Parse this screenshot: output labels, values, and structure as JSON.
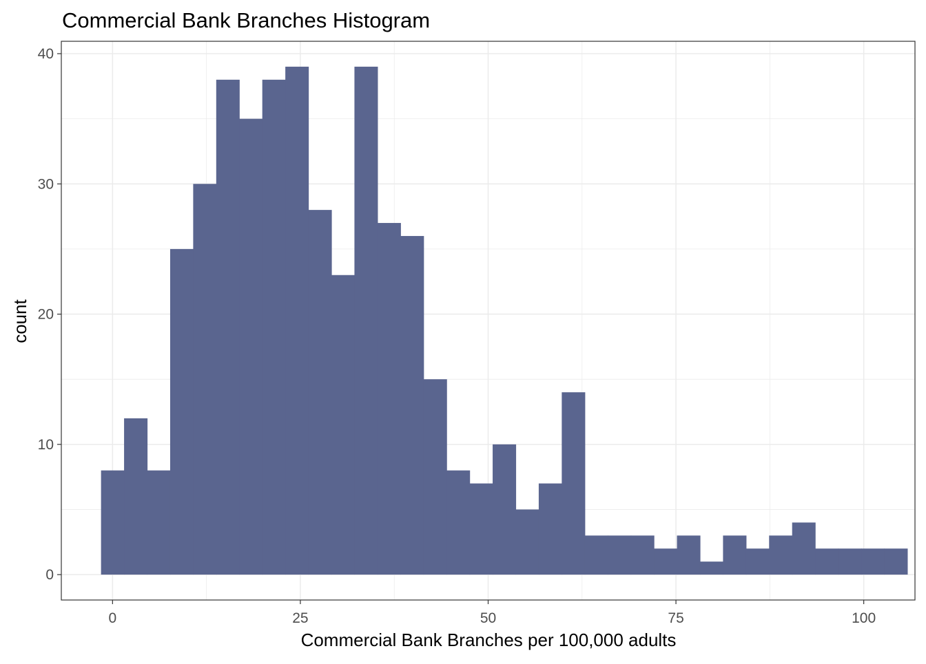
{
  "chart_data": {
    "type": "bar",
    "title": "Commercial Bank Branches Histogram",
    "xlabel": "Commercial Bank Branches per 100,000 adults",
    "ylabel": "count",
    "bin_width": 3.0667,
    "bin_start": -1.5333,
    "bin_edges": [
      -1.5333,
      1.5333,
      4.6,
      7.6667,
      10.7333,
      13.8,
      16.8667,
      19.9333,
      23.0,
      26.0667,
      29.1333,
      32.2,
      35.2667,
      38.3333,
      41.4,
      44.4667,
      47.5333,
      50.6,
      53.6667,
      56.7333,
      59.8,
      62.8667,
      65.9333,
      69.0,
      72.0667,
      75.1333,
      78.2,
      81.2667,
      84.3333,
      87.4,
      90.4667,
      93.5333,
      96.6,
      99.6667,
      102.7333,
      105.8
    ],
    "values": [
      8,
      12,
      8,
      25,
      30,
      38,
      35,
      38,
      39,
      28,
      23,
      39,
      27,
      26,
      15,
      8,
      7,
      10,
      5,
      7,
      14,
      3,
      3,
      3,
      2,
      3,
      1,
      3,
      2,
      3,
      4,
      2,
      2,
      2,
      2
    ],
    "xlim": [
      -6.82,
      106.82
    ],
    "ylim": [
      -1.95,
      40.95
    ],
    "x_ticks": [
      0,
      25,
      50,
      75,
      100
    ],
    "x_tick_labels": [
      "0",
      "25",
      "50",
      "75",
      "100"
    ],
    "x_minor_ticks": [
      12.5,
      37.5,
      62.5,
      87.5
    ],
    "y_ticks": [
      0,
      10,
      20,
      30,
      40
    ],
    "y_tick_labels": [
      "0",
      "10",
      "20",
      "30",
      "40"
    ],
    "y_minor_ticks": [
      5,
      15,
      25,
      35
    ],
    "grid": true,
    "legend": "none",
    "bar_color": "#5a658f",
    "grid_color": "#ebebeb",
    "panel_border_color": "#333333"
  }
}
